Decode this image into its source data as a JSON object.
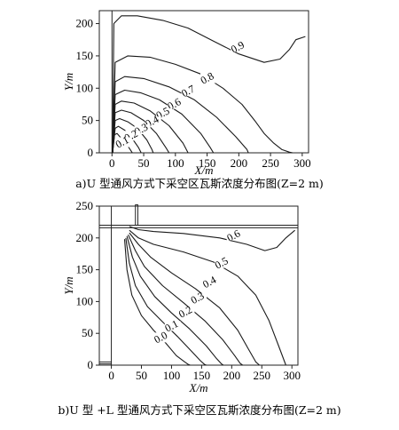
{
  "chart_data": [
    {
      "type": "line",
      "subtype": "contour",
      "title": "",
      "caption": "a)U 型通风方式下采空区瓦斯浓度分布图(Z=2 m)",
      "xlabel": "X/m",
      "ylabel": "Y/m",
      "xlim": [
        -20,
        310
      ],
      "ylim": [
        0,
        220
      ],
      "xticks": [
        "0",
        "50",
        "100",
        "150",
        "200",
        "250",
        "300"
      ],
      "yticks": [
        "0",
        "50",
        "100",
        "150",
        "200"
      ],
      "grid": false,
      "series": [
        {
          "name": "0.9",
          "x": [
            1,
            3,
            15,
            40,
            80,
            120,
            160,
            200,
            240,
            265,
            280,
            290,
            305
          ],
          "y": [
            0,
            200,
            212,
            212,
            205,
            193,
            173,
            153,
            140,
            145,
            160,
            175,
            180
          ]
        },
        {
          "name": "0.8",
          "x": [
            1,
            5,
            25,
            60,
            100,
            140,
            175,
            205,
            225,
            240,
            255,
            268,
            280,
            285
          ],
          "y": [
            0,
            140,
            150,
            148,
            137,
            122,
            100,
            75,
            50,
            30,
            15,
            5,
            1,
            0
          ]
        },
        {
          "name": "0.7",
          "x": [
            1,
            5,
            20,
            50,
            90,
            130,
            165,
            195,
            213,
            215
          ],
          "y": [
            0,
            110,
            118,
            115,
            102,
            82,
            55,
            25,
            5,
            0
          ]
        },
        {
          "name": "0.6",
          "x": [
            1,
            5,
            20,
            45,
            75,
            110,
            140,
            155,
            160
          ],
          "y": [
            0,
            90,
            97,
            93,
            82,
            60,
            30,
            8,
            0
          ]
        },
        {
          "name": "0.5",
          "x": [
            1,
            5,
            15,
            35,
            60,
            90,
            112,
            120
          ],
          "y": [
            0,
            75,
            80,
            77,
            65,
            42,
            15,
            0
          ]
        },
        {
          "name": "0.4",
          "x": [
            1,
            5,
            15,
            30,
            50,
            70,
            85,
            90
          ],
          "y": [
            0,
            62,
            66,
            62,
            50,
            30,
            8,
            0
          ]
        },
        {
          "name": "0.3",
          "x": [
            1,
            5,
            12,
            25,
            40,
            55,
            63,
            65
          ],
          "y": [
            0,
            50,
            53,
            48,
            38,
            20,
            5,
            0
          ]
        },
        {
          "name": "0.2",
          "x": [
            1,
            5,
            10,
            20,
            32,
            42,
            46
          ],
          "y": [
            0,
            38,
            41,
            35,
            22,
            8,
            0
          ]
        },
        {
          "name": "0.1",
          "x": [
            1,
            4,
            8,
            15,
            24,
            30,
            32
          ],
          "y": [
            0,
            28,
            30,
            22,
            12,
            3,
            0
          ]
        }
      ],
      "contour_labels": [
        {
          "text": "0.9",
          "x": 200,
          "y": 160
        },
        {
          "text": "0.8",
          "x": 152,
          "y": 112
        },
        {
          "text": "0.7",
          "x": 122,
          "y": 92
        },
        {
          "text": "0.6",
          "x": 100,
          "y": 72
        },
        {
          "text": "0.5",
          "x": 82,
          "y": 58
        },
        {
          "text": "0.4",
          "x": 65,
          "y": 45
        },
        {
          "text": "0.3",
          "x": 48,
          "y": 33
        },
        {
          "text": "0.2",
          "x": 32,
          "y": 23
        },
        {
          "text": "0.1",
          "x": 18,
          "y": 13
        }
      ]
    },
    {
      "type": "line",
      "subtype": "contour",
      "title": "",
      "caption": "b)U 型 +L 型通风方式下采空区瓦斯浓度分布图(Z=2 m)",
      "xlabel": "X/m",
      "ylabel": "Y/m",
      "xlim": [
        -20,
        310
      ],
      "ylim": [
        0,
        250
      ],
      "xticks": [
        "0",
        "50",
        "100",
        "150",
        "200",
        "250",
        "300"
      ],
      "yticks": [
        "0",
        "50",
        "100",
        "150",
        "200",
        "250"
      ],
      "grid": false,
      "series": [
        {
          "name": "0.6",
          "x": [
            30,
            45,
            70,
            120,
            180,
            225,
            255,
            275,
            290,
            305
          ],
          "y": [
            218,
            213,
            210,
            207,
            200,
            190,
            180,
            185,
            200,
            212
          ]
        },
        {
          "name": "0.5",
          "x": [
            30,
            45,
            70,
            120,
            170,
            210,
            240,
            262,
            278,
            290
          ],
          "y": [
            212,
            200,
            190,
            178,
            162,
            140,
            110,
            70,
            30,
            0
          ]
        },
        {
          "name": "0.4",
          "x": [
            30,
            45,
            65,
            100,
            140,
            180,
            210,
            228,
            240,
            246
          ],
          "y": [
            208,
            190,
            170,
            145,
            120,
            90,
            55,
            25,
            5,
            0
          ]
        },
        {
          "name": "0.3",
          "x": [
            28,
            40,
            55,
            85,
            120,
            155,
            185,
            205,
            214,
            218
          ],
          "y": [
            205,
            180,
            155,
            125,
            98,
            70,
            40,
            15,
            3,
            0
          ]
        },
        {
          "name": "0.2",
          "x": [
            26,
            35,
            48,
            72,
            100,
            130,
            158,
            175,
            183,
            186
          ],
          "y": [
            203,
            170,
            140,
            108,
            82,
            57,
            30,
            10,
            2,
            0
          ]
        },
        {
          "name": "0.1",
          "x": [
            24,
            30,
            40,
            60,
            85,
            110,
            133,
            148,
            155,
            158
          ],
          "y": [
            200,
            160,
            125,
            92,
            68,
            45,
            22,
            7,
            1,
            0
          ]
        },
        {
          "name": "0.0",
          "x": [
            22,
            26,
            34,
            50,
            70,
            90,
            108,
            122,
            128,
            131
          ],
          "y": [
            198,
            150,
            110,
            78,
            55,
            35,
            15,
            5,
            1,
            0
          ]
        }
      ],
      "contour_labels": [
        {
          "text": "0.6",
          "x": 205,
          "y": 200
        },
        {
          "text": "0.5",
          "x": 185,
          "y": 157
        },
        {
          "text": "0.4",
          "x": 165,
          "y": 127
        },
        {
          "text": "0.3",
          "x": 145,
          "y": 102
        },
        {
          "text": "0.2",
          "x": 125,
          "y": 80
        },
        {
          "text": "0.1",
          "x": 102,
          "y": 58
        },
        {
          "text": "0.0",
          "x": 84,
          "y": 40
        }
      ]
    }
  ]
}
